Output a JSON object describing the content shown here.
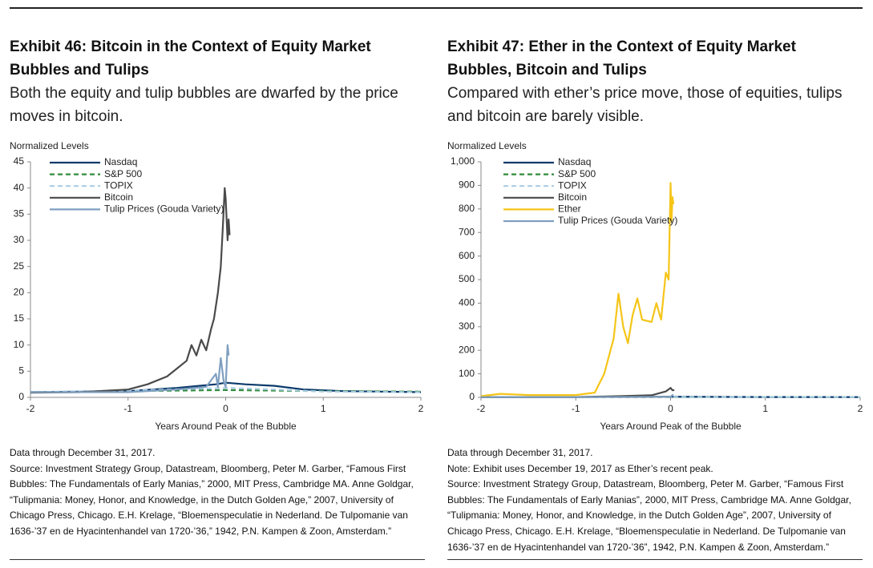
{
  "chart_data": [
    {
      "type": "line",
      "title": "Exhibit 46: Bitcoin in the Context of Equity Market Bubbles and Tulips",
      "subtitle": "Both the equity and tulip bubbles are dwarfed by the price moves in bitcoin.",
      "y_label": "Normalized Levels",
      "x_label": "Years Around Peak of the Bubble",
      "xlim": [
        -2,
        2
      ],
      "xticks": [
        -2,
        -1,
        0,
        1,
        2
      ],
      "ylim": [
        0,
        45
      ],
      "yticks": [
        0,
        5,
        10,
        15,
        20,
        25,
        30,
        35,
        40,
        45
      ],
      "series": [
        {
          "name": "Nasdaq",
          "color": "#0b3a6b",
          "dash": false,
          "x": [
            -2,
            -1.5,
            -1,
            -0.5,
            -0.1,
            0,
            0.2,
            0.5,
            0.8,
            1.2,
            1.6,
            2
          ],
          "values": [
            1,
            1.1,
            1.2,
            1.8,
            2.5,
            2.8,
            2.5,
            2.2,
            1.5,
            1.2,
            1.1,
            1
          ]
        },
        {
          "name": "S&P 500",
          "color": "#2e8b3a",
          "dash": true,
          "x": [
            -2,
            -1,
            0,
            1,
            2
          ],
          "values": [
            1,
            1.2,
            1.4,
            1.2,
            1.1
          ]
        },
        {
          "name": "TOPIX",
          "color": "#a9cce3",
          "dash": true,
          "x": [
            -2,
            -1,
            0,
            0.5,
            1,
            2
          ],
          "values": [
            1,
            1.3,
            1.8,
            1.5,
            1.1,
            1
          ]
        },
        {
          "name": "Bitcoin",
          "color": "#4a4a4a",
          "dash": false,
          "x": [
            -2,
            -1.5,
            -1,
            -0.8,
            -0.6,
            -0.5,
            -0.4,
            -0.35,
            -0.3,
            -0.25,
            -0.2,
            -0.15,
            -0.12,
            -0.08,
            -0.05,
            -0.03,
            -0.01,
            0,
            0.01,
            0.02,
            0.03,
            0.04
          ],
          "values": [
            0.9,
            1,
            1.5,
            2.5,
            4,
            5.5,
            7,
            10,
            8,
            11,
            9,
            13,
            15,
            20,
            25,
            32,
            40,
            38,
            34,
            30,
            34,
            31
          ]
        },
        {
          "name": "Tulip Prices (Gouda Variety)",
          "color": "#7f9fc0",
          "dash": false,
          "x": [
            -2,
            -1,
            -0.5,
            -0.2,
            -0.1,
            -0.08,
            -0.05,
            -0.02,
            0,
            0.02,
            0.03
          ],
          "values": [
            1,
            1,
            1.5,
            2,
            4.5,
            2,
            7.5,
            3,
            2,
            10,
            8
          ]
        }
      ],
      "notes": [
        "Data through December 31, 2017.",
        "Source: Investment Strategy Group, Datastream, Bloomberg, Peter M. Garber, “Famous First Bubbles: The Fundamentals of Early Manias,” 2000, MIT Press, Cambridge MA. Anne Goldgar, “Tulipmania: Money, Honor, and Knowledge, in the Dutch Golden Age,” 2007, University of Chicago Press, Chicago. E.H. Krelage, “Bloemenspeculatie in Nederland. De Tulpomanie van 1636-’37 en de Hyacintenhandel van 1720-’36,” 1942, P.N. Kampen & Zoon, Amsterdam.”"
      ]
    },
    {
      "type": "line",
      "title": "Exhibit 47: Ether in the Context of Equity Market Bubbles, Bitcoin and Tulips",
      "subtitle": "Compared with ether’s price move, those of equities, tulips and bitcoin are barely visible.",
      "y_label": "Normalized Levels",
      "x_label": "Years Around Peak of the Bubble",
      "xlim": [
        -2,
        2
      ],
      "xticks": [
        -2,
        -1,
        0,
        1,
        2
      ],
      "ylim": [
        0,
        1000
      ],
      "yticks": [
        0,
        100,
        200,
        300,
        400,
        500,
        600,
        700,
        800,
        900,
        {
          "value": 1000,
          "label": "1,000"
        }
      ],
      "series": [
        {
          "name": "Nasdaq",
          "color": "#0b3a6b",
          "dash": false,
          "x": [
            -2,
            -1,
            0,
            1,
            2
          ],
          "values": [
            1,
            1.2,
            2.8,
            1.2,
            1
          ]
        },
        {
          "name": "S&P 500",
          "color": "#2e8b3a",
          "dash": true,
          "x": [
            -2,
            -1,
            0,
            1,
            2
          ],
          "values": [
            1,
            1.2,
            1.4,
            1.2,
            1.1
          ]
        },
        {
          "name": "TOPIX",
          "color": "#a9cce3",
          "dash": true,
          "x": [
            -2,
            -1,
            0,
            1,
            2
          ],
          "values": [
            1,
            1.3,
            1.8,
            1.1,
            1
          ]
        },
        {
          "name": "Bitcoin",
          "color": "#4a4a4a",
          "dash": false,
          "x": [
            -2,
            -1,
            -0.5,
            -0.2,
            -0.05,
            0,
            0.02,
            0.04
          ],
          "values": [
            0.9,
            1.5,
            5.5,
            9,
            25,
            40,
            30,
            31
          ]
        },
        {
          "name": "Ether",
          "color": "#f5c518",
          "dash": false,
          "x": [
            -2,
            -1.8,
            -1.5,
            -1.2,
            -1,
            -0.8,
            -0.7,
            -0.6,
            -0.55,
            -0.5,
            -0.45,
            -0.4,
            -0.35,
            -0.3,
            -0.2,
            -0.15,
            -0.1,
            -0.05,
            -0.02,
            0,
            0.01,
            0.02,
            0.03
          ],
          "values": [
            5,
            15,
            10,
            10,
            10,
            20,
            100,
            250,
            440,
            300,
            230,
            350,
            420,
            330,
            320,
            400,
            330,
            530,
            500,
            910,
            750,
            850,
            820
          ]
        },
        {
          "name": "Tulip Prices (Gouda Variety)",
          "color": "#7f9fc0",
          "dash": false,
          "x": [
            -2,
            -1,
            0,
            0.02,
            0.03
          ],
          "values": [
            1,
            1,
            2,
            10,
            8
          ]
        }
      ],
      "notes": [
        "Data through December 31, 2017.",
        "Note: Exhibit uses December 19, 2017 as Ether’s recent peak.",
        "Source: Investment Strategy Group, Datastream, Bloomberg, Peter M. Garber, “Famous First Bubbles: The Fundamentals of Early Manias”, 2000, MIT Press, Cambridge MA. Anne Goldgar, “Tulipmania: Money, Honor, and Knowledge, in the Dutch Golden Age”, 2007, University of Chicago Press, Chicago. E.H. Krelage, “Bloemenspeculatie in Nederland. De Tulpomanie van 1636-’37 en de Hyacintenhandel van 1720-’36”, 1942, P.N. Kampen & Zoon, Amsterdam.”"
      ]
    }
  ]
}
